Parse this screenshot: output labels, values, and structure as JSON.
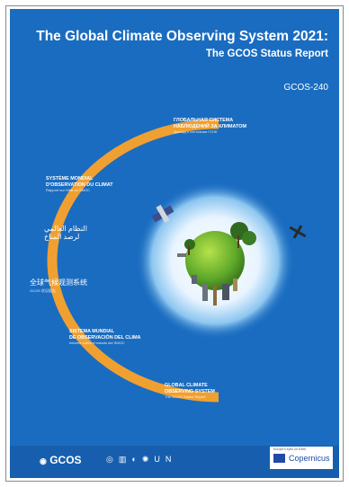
{
  "cover": {
    "title": "The Global Climate Observing System 2021:",
    "subtitle": "The GCOS Status Report",
    "code": "GCOS-240"
  },
  "arc_labels": [
    {
      "main": "ГЛОБАЛЬНАЯ СИСТЕМА",
      "main2": "НАБЛЮДЕНИЙ ЗА КЛИМАТОМ",
      "small": "Доклад о состоянии ГСНК"
    },
    {
      "main": "SYSTÈME MONDIAL",
      "main2": "D'OBSERVATION DU CLIMAT",
      "small": "Rapport sur l'état du SMOC"
    },
    {
      "main": "النظام العالمي",
      "main2": "لرصد المناخ",
      "small": ""
    },
    {
      "main": "全球气候观测系统",
      "main2": "",
      "small": "GCOS 状况报告"
    },
    {
      "main": "SISTEMA MUNDIAL",
      "main2": "DE OBSERVACIÓN DEL CLIMA",
      "small": "Informe sobre el estado del SMOC"
    },
    {
      "main": "GLOBAL CLIMATE",
      "main2": "OBSERVING SYSTEM",
      "small": "The GCOS Status Report"
    }
  ],
  "footer": {
    "gcos": "GCOS",
    "partners": "UN",
    "copernicus_top": "Europe's eyes on Earth",
    "copernicus": "Copernicus"
  },
  "colors": {
    "background": "#1a6cc0",
    "arc": "#f0a030",
    "text": "#ffffff"
  }
}
